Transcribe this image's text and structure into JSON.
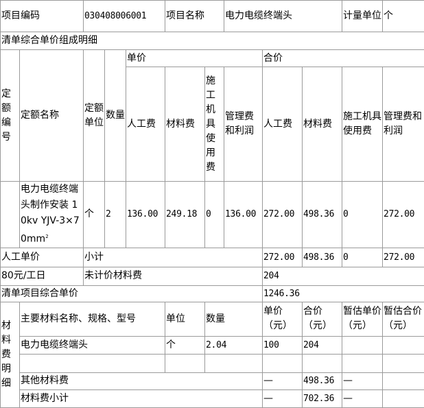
{
  "header": {
    "code_label": "项目编码",
    "code_value": "030408006001",
    "name_label": "项目名称",
    "name_value": "电力电缆终端头",
    "unit_label": "计量单位",
    "unit_value": "个"
  },
  "section_title": "清单综合单价组成明细",
  "columns": {
    "quota_code": "定额编号",
    "quota_name": "定额名称",
    "quota_unit": "定额单位",
    "quantity": "数量",
    "unit_price": "单价",
    "total_price": "合价",
    "labor": "人工费",
    "material": "材料费",
    "machine": "施工机具使用费",
    "mgmt": "管理费和利润"
  },
  "rows": [
    {
      "code": "",
      "name": "电力电缆终端头制作安装 10kv YJV-3×70mm",
      "name_sup": "2",
      "unit": "个",
      "qty": "2",
      "unit_labor": "136.00",
      "unit_material": "249.18",
      "unit_machine": "0",
      "unit_mgmt": "136.00",
      "total_labor": "272.00",
      "total_material": "498.36",
      "total_machine": "0",
      "total_mgmt": "272.00"
    }
  ],
  "labor_rate_label": "人工单价",
  "labor_rate_value": "80元/工日",
  "subtotal": {
    "label": "小计",
    "labor": "272.00",
    "material": "498.36",
    "machine": "0",
    "mgmt": "272.00"
  },
  "unpriced_material": {
    "label": "未计价材料费",
    "value": "204"
  },
  "composite_price": {
    "label": "清单项目综合单价",
    "value": "1246.36"
  },
  "materials": {
    "section_label": "材料费明细",
    "headers": {
      "name": "主要材料名称、规格、型号",
      "unit": "单位",
      "qty": "数量",
      "unit_price": "单价（元）",
      "total": "合价（元）",
      "est_unit": "暂估单价（元）",
      "est_total": "暂估合价（元）"
    },
    "items": [
      {
        "name": "电力电缆终端头",
        "unit": "个",
        "qty": "2.04",
        "unit_price": "100",
        "total": "204",
        "est_unit": "",
        "est_total": ""
      },
      {
        "name": "",
        "unit": "",
        "qty": "",
        "unit_price": "",
        "total": "",
        "est_unit": "",
        "est_total": ""
      }
    ],
    "other": {
      "label": "其他材料费",
      "unit_price": "—",
      "total": "498.36",
      "est_unit": "—",
      "est_total": ""
    },
    "subtotal": {
      "label": "材料费小计",
      "unit_price": "—",
      "total": "702.36",
      "est_unit": "—",
      "est_total": ""
    }
  }
}
